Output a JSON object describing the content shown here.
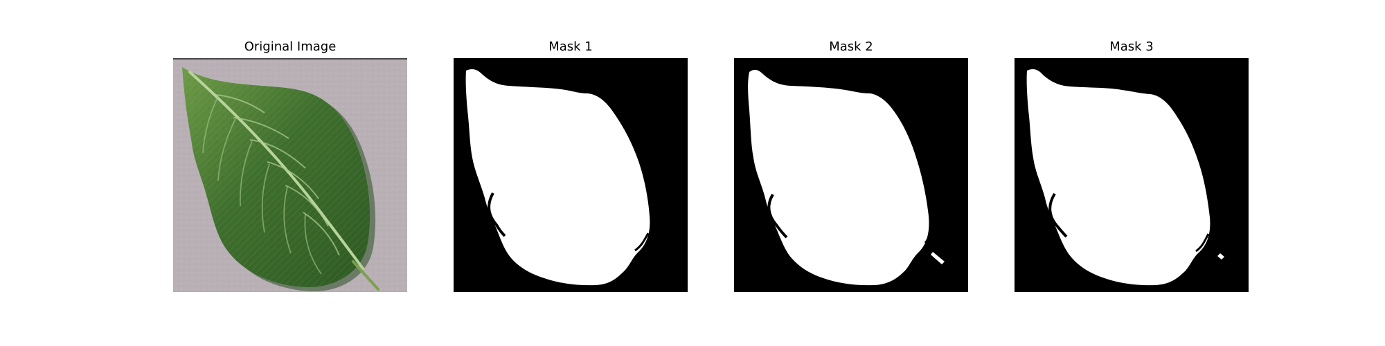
{
  "figure": {
    "panels": [
      {
        "title": "Original Image",
        "kind": "photo"
      },
      {
        "title": "Mask 1",
        "kind": "mask"
      },
      {
        "title": "Mask 2",
        "kind": "mask"
      },
      {
        "title": "Mask 3",
        "kind": "mask"
      }
    ],
    "colors": {
      "background": "#ffffff",
      "mask_foreground": "#ffffff",
      "mask_background": "#000000",
      "leaf_dark": "#2f5a23",
      "leaf_mid": "#4f7f33",
      "leaf_light": "#73a04c",
      "surface": "#b9b1b6"
    }
  }
}
